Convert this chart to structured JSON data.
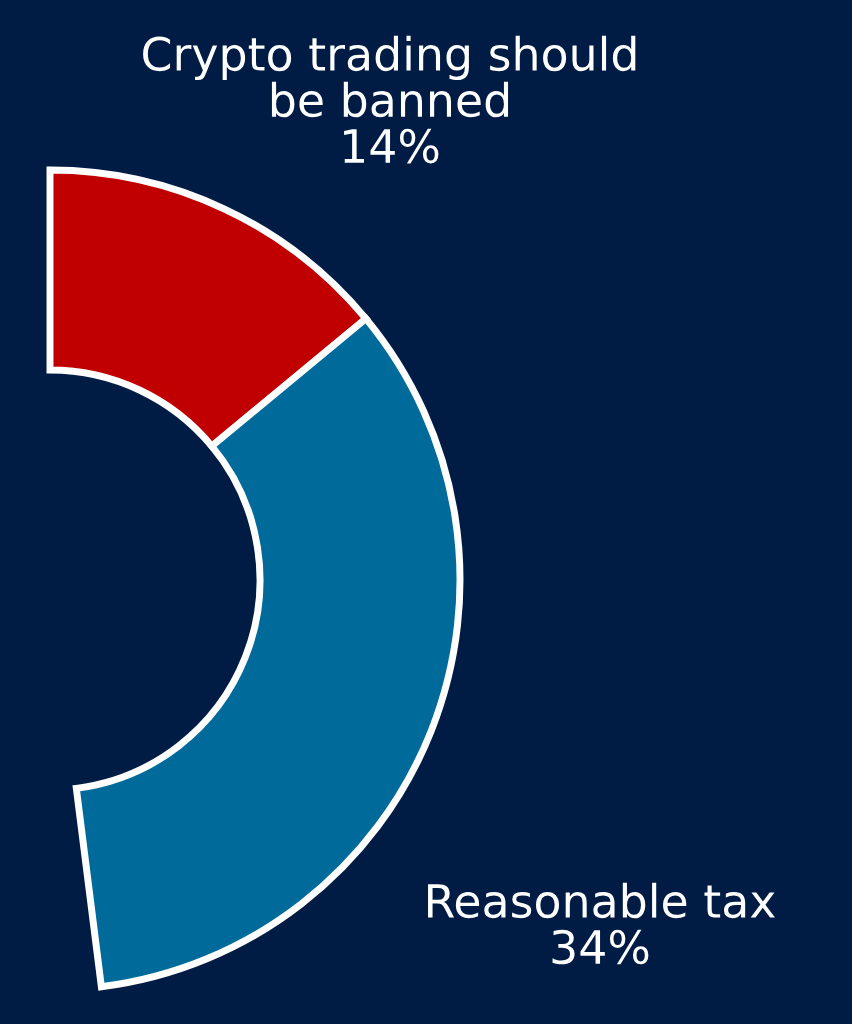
{
  "chart_data": {
    "type": "donut",
    "categories": [
      "Crypto trading should be banned",
      "Reasonable tax"
    ],
    "values": [
      14,
      34
    ],
    "value_labels": [
      "14%",
      "34%"
    ],
    "colors": [
      "#c00000",
      "#006a9a"
    ],
    "data_labels": true
  }
}
